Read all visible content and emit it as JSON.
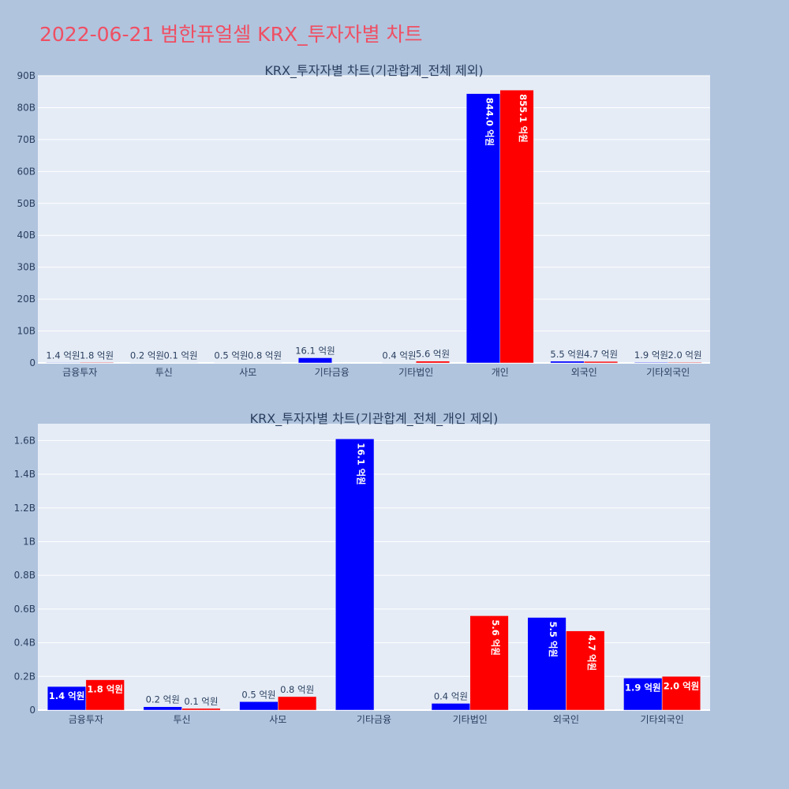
{
  "page_title": "2022-06-21 범한퓨얼셀 KRX_투자자별 차트",
  "chart_data": [
    {
      "type": "bar",
      "title": "KRX_투자자별 차트(기관합계_전체 제외)",
      "categories": [
        "금융투자",
        "투신",
        "사모",
        "기타금융",
        "기타법인",
        "개인",
        "외국인",
        "기타외국인"
      ],
      "yticks": [
        "0",
        "10B",
        "20B",
        "30B",
        "40B",
        "50B",
        "60B",
        "70B",
        "80B",
        "90B"
      ],
      "ylim": [
        0,
        90000000000
      ],
      "series": [
        {
          "color": "#0000ff",
          "values": [
            140000000,
            20000000,
            50000000,
            1610000000,
            40000000,
            84400000000,
            550000000,
            190000000
          ],
          "labels": [
            "1.4 억원",
            "0.2 억원",
            "0.5 억원",
            "16.1 억원",
            "0.4 억원",
            "844.0 억원",
            "5.5 억원",
            "1.9 억원"
          ]
        },
        {
          "color": "#ff0000",
          "values": [
            180000000,
            10000000,
            80000000,
            null,
            560000000,
            85510000000,
            470000000,
            200000000
          ],
          "labels": [
            "1.8 억원",
            "0.1 억원",
            "0.8 억원",
            "",
            "5.6 억원",
            "855.1 억원",
            "4.7 억원",
            "2.0 억원"
          ]
        }
      ]
    },
    {
      "type": "bar",
      "title": "KRX_투자자별 차트(기관합계_전체_개인 제외)",
      "categories": [
        "금융투자",
        "투신",
        "사모",
        "기타금융",
        "기타법인",
        "외국인",
        "기타외국인"
      ],
      "yticks": [
        "0",
        "0.2B",
        "0.4B",
        "0.6B",
        "0.8B",
        "1B",
        "1.2B",
        "1.4B",
        "1.6B"
      ],
      "ylim": [
        0,
        1700000000
      ],
      "series": [
        {
          "color": "#0000ff",
          "values": [
            140000000,
            20000000,
            50000000,
            1610000000,
            40000000,
            550000000,
            190000000
          ],
          "labels": [
            "1.4 억원",
            "0.2 억원",
            "0.5 억원",
            "16.1 억원",
            "0.4 억원",
            "5.5 억원",
            "1.9 억원"
          ]
        },
        {
          "color": "#ff0000",
          "values": [
            180000000,
            10000000,
            80000000,
            null,
            560000000,
            470000000,
            200000000
          ],
          "labels": [
            "1.8 억원",
            "0.1 억원",
            "0.8 억원",
            "",
            "5.6 억원",
            "4.7 억원",
            "2.0 억원"
          ]
        }
      ]
    }
  ]
}
